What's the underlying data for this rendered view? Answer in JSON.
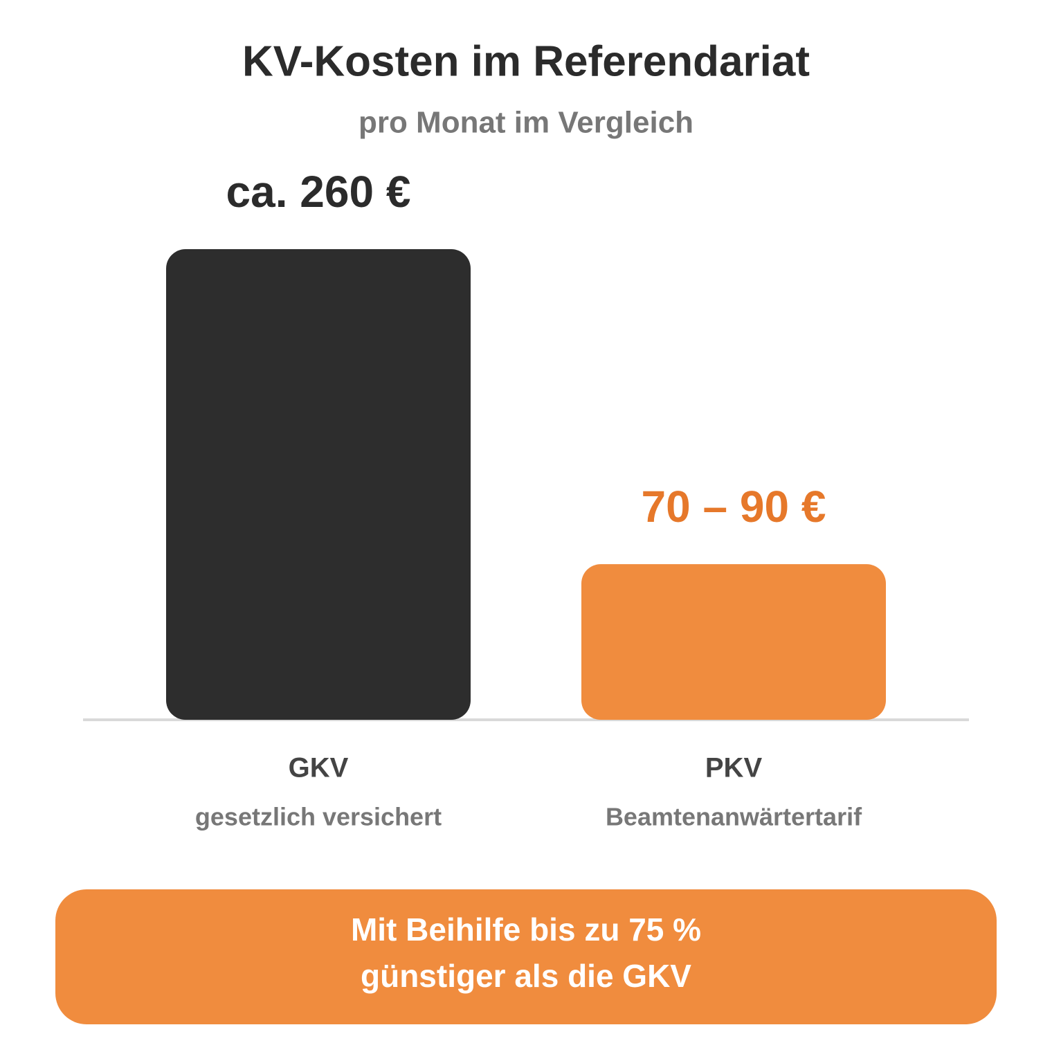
{
  "chart_data": {
    "type": "bar",
    "title": "KV-Kosten im Referendariat",
    "subtitle": "pro Monat im Vergleich",
    "categories": [
      "GKV",
      "PKV"
    ],
    "category_notes": [
      "gesetzlich versichert",
      "Beamtenanwärtertarif"
    ],
    "values": [
      260,
      86
    ],
    "value_labels": [
      "ca. 260 €",
      "70 – 90 €"
    ],
    "colors": [
      "#2d2d2d",
      "#f08c3e"
    ],
    "label_colors": [
      "#2b2b2b",
      "#e6782a"
    ],
    "annotation": [
      "Mit Beihilfe bis zu 75 %",
      "günstiger als die GKV"
    ]
  }
}
